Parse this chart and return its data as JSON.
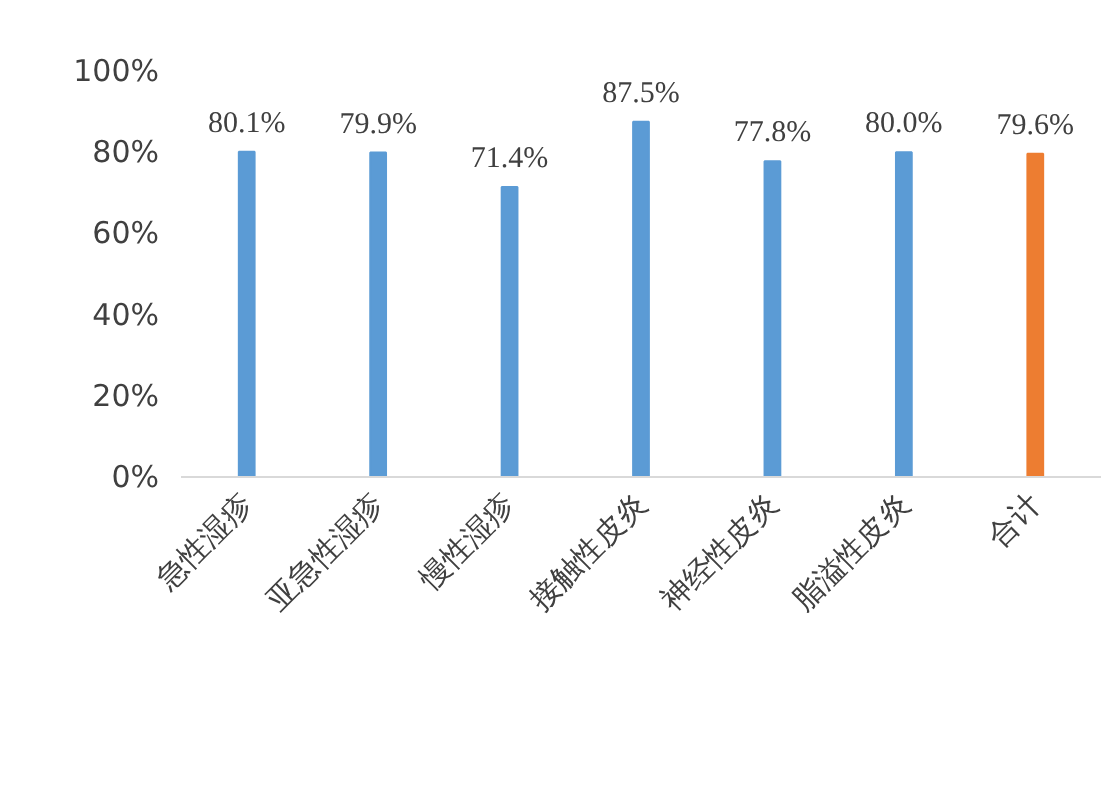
{
  "chart_data": {
    "type": "bar",
    "categories": [
      "急性湿疹",
      "亚急性湿疹",
      "慢性湿疹",
      "接触性皮炎",
      "神经性皮炎",
      "脂溢性皮炎",
      "合计"
    ],
    "values": [
      80.1,
      79.9,
      71.4,
      87.5,
      77.8,
      80.0,
      79.6
    ],
    "colors": [
      "#5b9bd5",
      "#5b9bd5",
      "#5b9bd5",
      "#5b9bd5",
      "#5b9bd5",
      "#5b9bd5",
      "#ed7d31"
    ],
    "value_labels": [
      "80.1%",
      "79.9%",
      "71.4%",
      "87.5%",
      "77.8%",
      "80.0%",
      "79.6%"
    ],
    "ylim": [
      0,
      100
    ],
    "yticks": [
      {
        "value": 0,
        "label": "0%"
      },
      {
        "value": 20,
        "label": "20%"
      },
      {
        "value": 40,
        "label": "40%"
      },
      {
        "value": 60,
        "label": "60%"
      },
      {
        "value": 80,
        "label": "80%"
      },
      {
        "value": 100,
        "label": "100%"
      }
    ],
    "grid": false
  }
}
